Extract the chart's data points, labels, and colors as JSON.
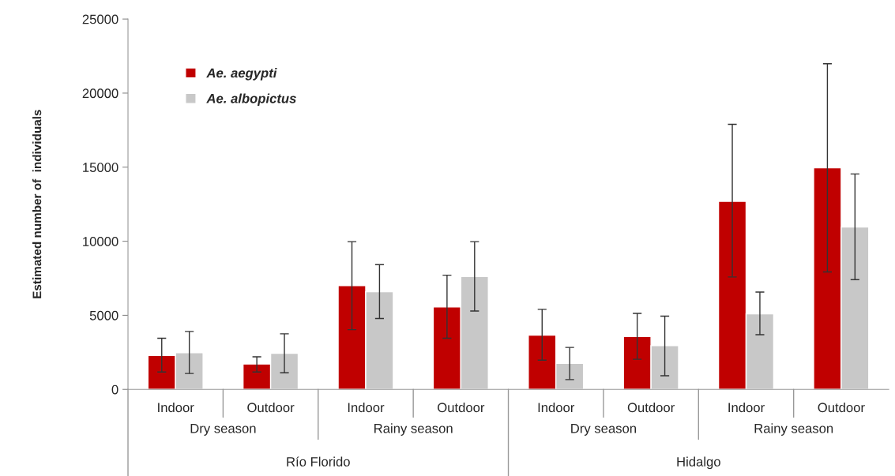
{
  "chart_data": {
    "type": "bar",
    "ylabel": "Estimated number of  individuals",
    "categories": [
      "Indoor",
      "Outdoor",
      "Indoor",
      "Outdoor",
      "Indoor",
      "Outdoor",
      "Indoor",
      "Outdoor"
    ],
    "series": [
      {
        "name": "Ae. aegypti",
        "color": "#c00000",
        "values": [
          2290,
          1710,
          7000,
          5560,
          3660,
          3570,
          12700,
          14960
        ],
        "errors": [
          [
            1170,
            3450
          ],
          [
            1170,
            2200
          ],
          [
            4030,
            9970
          ],
          [
            3450,
            7710
          ],
          [
            1970,
            5400
          ],
          [
            2030,
            5130
          ],
          [
            7590,
            17890
          ],
          [
            7930,
            21980
          ]
        ]
      },
      {
        "name": "Ae. albopictus",
        "color": "#c8c8c8",
        "values": [
          2470,
          2430,
          6590,
          7620,
          1760,
          2950,
          5100,
          10960
        ],
        "errors": [
          [
            1070,
            3910
          ],
          [
            1120,
            3750
          ],
          [
            4780,
            8420
          ],
          [
            5290,
            9970
          ],
          [
            660,
            2830
          ],
          [
            920,
            4940
          ],
          [
            3690,
            6570
          ],
          [
            7410,
            14540
          ]
        ]
      }
    ],
    "annotations": [
      "Dry season",
      "Rainy season",
      "Dry season",
      "Rainy season",
      "Río Florido",
      "Hidalgo"
    ],
    "ylim": [
      0,
      25000
    ],
    "yticks": [
      0,
      5000,
      10000,
      15000,
      20000,
      25000
    ],
    "grid": false,
    "legend": "top left"
  }
}
